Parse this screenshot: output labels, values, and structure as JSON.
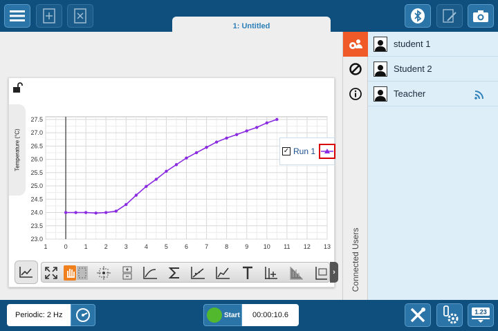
{
  "header": {
    "tab_title": "1: Untitled",
    "icons": [
      "menu-icon",
      "add-page-icon",
      "delete-page-icon",
      "bluetooth-icon",
      "annotate-icon",
      "camera-icon"
    ]
  },
  "graph": {
    "ylabel": "Temperature (°C)",
    "legend": {
      "run_label": "Run 1",
      "checked": "✓"
    },
    "toolbar_more": "›"
  },
  "chart_data": {
    "type": "line",
    "ylabel": "Temperature (°C)",
    "xlim": [
      -1,
      13
    ],
    "ylim": [
      23.0,
      27.6
    ],
    "x_ticks": [
      "1",
      "0",
      "1",
      "2",
      "3",
      "4",
      "5",
      "6",
      "7",
      "8",
      "9",
      "10",
      "11",
      "12",
      "13"
    ],
    "y_ticks": [
      "23.0",
      "23.5",
      "24.0",
      "24.5",
      "25.0",
      "25.5",
      "26.0",
      "26.5",
      "27.0",
      "27.5"
    ],
    "grid": true,
    "legend_position": "top-right",
    "series": [
      {
        "name": "Run 1",
        "color": "#8a2be2",
        "x": [
          0,
          0.5,
          1,
          1.5,
          2,
          2.5,
          3,
          3.5,
          4,
          4.5,
          5,
          5.5,
          6,
          6.5,
          7,
          7.5,
          8,
          8.5,
          9,
          9.5,
          10,
          10.5
        ],
        "y": [
          24.0,
          24.0,
          24.0,
          23.98,
          24.0,
          24.05,
          24.3,
          24.65,
          24.98,
          25.25,
          25.55,
          25.8,
          26.05,
          26.25,
          26.45,
          26.65,
          26.8,
          26.93,
          27.07,
          27.2,
          27.37,
          27.5
        ]
      }
    ]
  },
  "sidebar": {
    "panel_label": "Connected Users",
    "users": [
      {
        "name": "student 1"
      },
      {
        "name": "Student 2"
      },
      {
        "name": "Teacher"
      }
    ]
  },
  "footer": {
    "rate": "Periodic: 2 Hz",
    "start_label": "Start",
    "timer": "00:00:10.6",
    "meter_value": "1.23"
  },
  "colors": {
    "bar": "#0f4f7e",
    "button": "#2a74a8",
    "active_tab": "#f05a28",
    "series": "#8a2be2",
    "start": "#52b82e"
  }
}
